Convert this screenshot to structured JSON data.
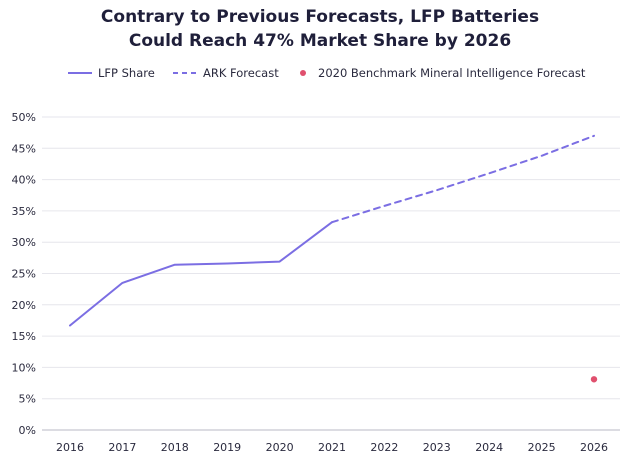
{
  "chart_data": {
    "type": "line",
    "title": [
      "Contrary to Previous Forecasts, LFP Batteries",
      "Could Reach 47% Market Share by 2026"
    ],
    "x": [
      2016,
      2017,
      2018,
      2019,
      2020,
      2021,
      2022,
      2023,
      2024,
      2025,
      2026
    ],
    "yticks": [
      "0%",
      "5%",
      "10%",
      "15%",
      "20%",
      "25%",
      "30%",
      "35%",
      "40%",
      "45%",
      "50%"
    ],
    "ylim": [
      0,
      50
    ],
    "grid": true,
    "legend_position": "top",
    "series": [
      {
        "name": "LFP Share",
        "style": "solid",
        "color": "#7b6ee3",
        "points": [
          [
            2016,
            16.7
          ],
          [
            2017,
            23.5
          ],
          [
            2018,
            26.4
          ],
          [
            2019,
            26.6
          ],
          [
            2020,
            26.9
          ],
          [
            2021,
            33.2
          ]
        ]
      },
      {
        "name": "ARK Forecast",
        "style": "dashed",
        "color": "#7b6ee3",
        "points": [
          [
            2021,
            33.2
          ],
          [
            2022,
            35.8
          ],
          [
            2023,
            38.3
          ],
          [
            2024,
            41.0
          ],
          [
            2025,
            43.8
          ],
          [
            2026,
            47.0
          ]
        ]
      },
      {
        "name": "2020 Benchmark Mineral Intelligence Forecast",
        "style": "point",
        "color": "#e0506e",
        "points": [
          [
            2026,
            8.1
          ]
        ]
      }
    ]
  }
}
